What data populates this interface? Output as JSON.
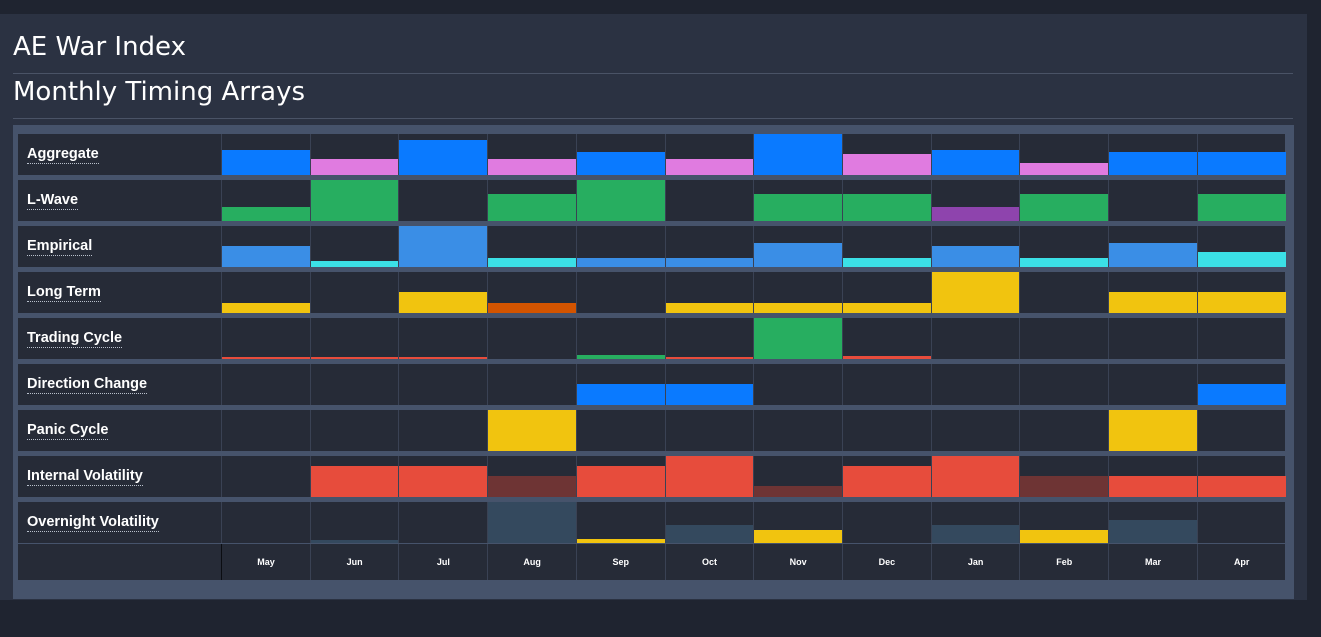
{
  "header": {
    "title": "AE War Index",
    "subtitle": "Monthly Timing Arrays"
  },
  "colors": {
    "blue": "#0a7aff",
    "pink": "#e07be0",
    "green": "#27ae60",
    "purple": "#8e44ad",
    "lightblue": "#3a8ee6",
    "cyan": "#3be0e6",
    "yellow": "#f1c40f",
    "orange": "#d35400",
    "red": "#e74c3c",
    "darkred": "#6e3434",
    "slate": "#34495e"
  },
  "months": [
    "May",
    "Jun",
    "Jul",
    "Aug",
    "Sep",
    "Oct",
    "Nov",
    "Dec",
    "Jan",
    "Feb",
    "Mar",
    "Apr"
  ],
  "rows": [
    {
      "label": "Aggregate",
      "cells": [
        {
          "level": 0.6,
          "color": "blue"
        },
        {
          "level": 0.4,
          "color": "pink"
        },
        {
          "level": 0.85,
          "color": "blue"
        },
        {
          "level": 0.4,
          "color": "pink"
        },
        {
          "level": 0.55,
          "color": "blue"
        },
        {
          "level": 0.4,
          "color": "pink"
        },
        {
          "level": 1.0,
          "color": "blue"
        },
        {
          "level": 0.5,
          "color": "pink"
        },
        {
          "level": 0.6,
          "color": "blue"
        },
        {
          "level": 0.3,
          "color": "pink"
        },
        {
          "level": 0.55,
          "color": "blue"
        },
        {
          "level": 0.55,
          "color": "blue"
        }
      ]
    },
    {
      "label": "L-Wave",
      "cells": [
        {
          "level": 0.35,
          "color": "green"
        },
        {
          "level": 1.0,
          "color": "green"
        },
        {
          "level": 0,
          "color": "green"
        },
        {
          "level": 0.65,
          "color": "green"
        },
        {
          "level": 1.0,
          "color": "green"
        },
        {
          "level": 0,
          "color": "green"
        },
        {
          "level": 0.65,
          "color": "green"
        },
        {
          "level": 0.65,
          "color": "green"
        },
        {
          "level": 0.35,
          "color": "purple"
        },
        {
          "level": 0.65,
          "color": "green"
        },
        {
          "level": 0,
          "color": "green"
        },
        {
          "level": 0.65,
          "color": "green"
        }
      ]
    },
    {
      "label": "Empirical",
      "cells": [
        {
          "level": 0.5,
          "color": "lightblue"
        },
        {
          "level": 0.15,
          "color": "cyan"
        },
        {
          "level": 1.0,
          "color": "lightblue"
        },
        {
          "level": 0.22,
          "color": "cyan"
        },
        {
          "level": 0.22,
          "color": "lightblue"
        },
        {
          "level": 0.22,
          "color": "lightblue"
        },
        {
          "level": 0.58,
          "color": "lightblue"
        },
        {
          "level": 0.22,
          "color": "cyan"
        },
        {
          "level": 0.5,
          "color": "lightblue"
        },
        {
          "level": 0.22,
          "color": "cyan"
        },
        {
          "level": 0.58,
          "color": "lightblue"
        },
        {
          "level": 0.36,
          "color": "cyan"
        }
      ]
    },
    {
      "label": "Long Term",
      "cells": [
        {
          "level": 0.25,
          "color": "yellow"
        },
        {
          "level": 0,
          "color": "yellow"
        },
        {
          "level": 0.5,
          "color": "yellow"
        },
        {
          "level": 0.25,
          "color": "orange"
        },
        {
          "level": 0,
          "color": "yellow"
        },
        {
          "level": 0.25,
          "color": "yellow"
        },
        {
          "level": 0.25,
          "color": "yellow"
        },
        {
          "level": 0.25,
          "color": "yellow"
        },
        {
          "level": 1.0,
          "color": "yellow"
        },
        {
          "level": 0,
          "color": "yellow"
        },
        {
          "level": 0.5,
          "color": "yellow"
        },
        {
          "level": 0.5,
          "color": "yellow"
        }
      ]
    },
    {
      "label": "Trading Cycle",
      "cells": [
        {
          "level": 0.04,
          "color": "red"
        },
        {
          "level": 0.04,
          "color": "red"
        },
        {
          "level": 0.06,
          "color": "red"
        },
        {
          "level": 0,
          "color": "red"
        },
        {
          "level": 0.1,
          "color": "green"
        },
        {
          "level": 0.06,
          "color": "red"
        },
        {
          "level": 1.0,
          "color": "green"
        },
        {
          "level": 0.08,
          "color": "red"
        },
        {
          "level": 0,
          "color": "red"
        },
        {
          "level": 0,
          "color": "red"
        },
        {
          "level": 0,
          "color": "red"
        },
        {
          "level": 0,
          "color": "red"
        }
      ]
    },
    {
      "label": "Direction Change",
      "cells": [
        {
          "level": 0,
          "color": "blue"
        },
        {
          "level": 0,
          "color": "blue"
        },
        {
          "level": 0,
          "color": "blue"
        },
        {
          "level": 0,
          "color": "blue"
        },
        {
          "level": 0.5,
          "color": "blue"
        },
        {
          "level": 0.5,
          "color": "blue"
        },
        {
          "level": 0,
          "color": "blue"
        },
        {
          "level": 0,
          "color": "blue"
        },
        {
          "level": 0,
          "color": "blue"
        },
        {
          "level": 0,
          "color": "blue"
        },
        {
          "level": 0,
          "color": "blue"
        },
        {
          "level": 0.5,
          "color": "blue"
        }
      ]
    },
    {
      "label": "Panic Cycle",
      "cells": [
        {
          "level": 0,
          "color": "yellow"
        },
        {
          "level": 0,
          "color": "yellow"
        },
        {
          "level": 0,
          "color": "yellow"
        },
        {
          "level": 1.0,
          "color": "yellow"
        },
        {
          "level": 0,
          "color": "yellow"
        },
        {
          "level": 0,
          "color": "yellow"
        },
        {
          "level": 0,
          "color": "yellow"
        },
        {
          "level": 0,
          "color": "yellow"
        },
        {
          "level": 0,
          "color": "yellow"
        },
        {
          "level": 0,
          "color": "yellow"
        },
        {
          "level": 1.0,
          "color": "yellow"
        },
        {
          "level": 0,
          "color": "yellow"
        }
      ]
    },
    {
      "label": "Internal Volatility",
      "cells": [
        {
          "level": 0,
          "color": "red"
        },
        {
          "level": 0.75,
          "color": "red"
        },
        {
          "level": 0.75,
          "color": "red"
        },
        {
          "level": 0.5,
          "color": "darkred"
        },
        {
          "level": 0.75,
          "color": "red"
        },
        {
          "level": 1.0,
          "color": "red"
        },
        {
          "level": 0.27,
          "color": "darkred"
        },
        {
          "level": 0.75,
          "color": "red"
        },
        {
          "level": 1.0,
          "color": "red"
        },
        {
          "level": 0.5,
          "color": "darkred"
        },
        {
          "level": 0.5,
          "color": "red"
        },
        {
          "level": 0.5,
          "color": "red"
        }
      ]
    },
    {
      "label": "Overnight Volatility",
      "cells": [
        {
          "level": 0,
          "color": "slate"
        },
        {
          "level": 0.08,
          "color": "slate"
        },
        {
          "level": 0,
          "color": "slate"
        },
        {
          "level": 1.0,
          "color": "slate"
        },
        {
          "level": 0.1,
          "color": "yellow"
        },
        {
          "level": 0.45,
          "color": "slate"
        },
        {
          "level": 0.32,
          "color": "yellow"
        },
        {
          "level": 0,
          "color": "slate"
        },
        {
          "level": 0.45,
          "color": "slate"
        },
        {
          "level": 0.32,
          "color": "yellow"
        },
        {
          "level": 0.55,
          "color": "slate"
        },
        {
          "level": 0,
          "color": "slate"
        }
      ]
    }
  ]
}
